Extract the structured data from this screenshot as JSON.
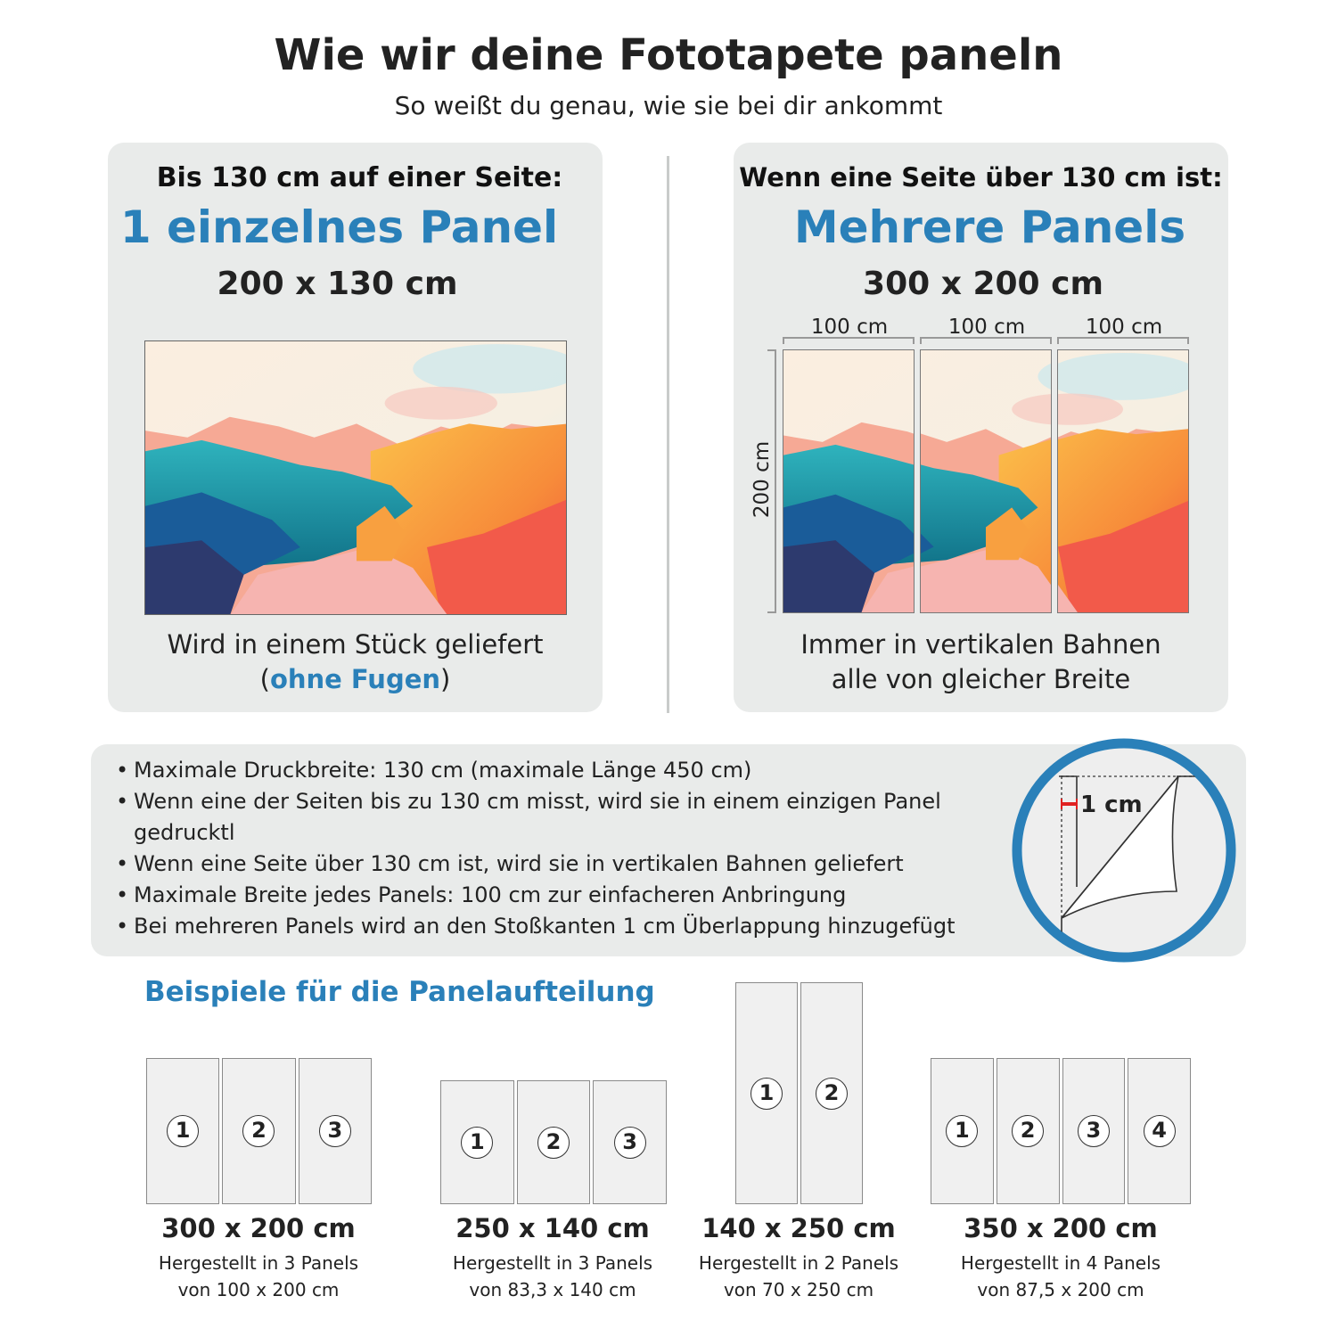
{
  "header": {
    "title": "Wie wir deine Fototapete paneln",
    "subtitle": "So weißt du genau, wie sie bei dir ankommt"
  },
  "left_card": {
    "heading": "Bis 130 cm auf einer Seite:",
    "highlight": "1 einzelnes Panel",
    "dimensions": "200 x 130 cm",
    "footer_line1": "Wird in einem Stück geliefert",
    "footer_open": "(",
    "footer_highlight": "ohne Fugen",
    "footer_close": ")"
  },
  "right_card": {
    "heading": "Wenn eine Seite über 130 cm ist:",
    "highlight": "Mehrere Panels",
    "dimensions": "300 x 200 cm",
    "panel_width_labels": [
      "100 cm",
      "100 cm",
      "100 cm"
    ],
    "height_label": "200 cm",
    "footer_line1": "Immer in vertikalen Bahnen",
    "footer_line2": "alle von gleicher Breite"
  },
  "info": {
    "bullets": [
      "Maximale Druckbreite: 130 cm (maximale Länge 450 cm)",
      "Wenn eine der Seiten bis zu 130 cm misst, wird sie in einem einzigen Panel gedrucktl",
      "Wenn eine Seite über 130 cm ist, wird sie in vertikalen Bahnen geliefert",
      "Maximale Breite jedes Panels: 100 cm zur einfacheren Anbringung",
      "Bei mehreren Panels wird an den Stoßkanten 1 cm Überlappung hinzugefügt"
    ],
    "overlap_label": "1 cm"
  },
  "examples": {
    "heading": "Beispiele für die Panelaufteilung",
    "items": [
      {
        "size": "300 x 200 cm",
        "line1": "Hergestellt in 3 Panels",
        "line2": "von 100 x 200 cm",
        "panels": [
          "1",
          "2",
          "3"
        ]
      },
      {
        "size": "250 x 140 cm",
        "line1": "Hergestellt in 3 Panels",
        "line2": "von 83,3 x 140 cm",
        "panels": [
          "1",
          "2",
          "3"
        ]
      },
      {
        "size": "140 x 250 cm",
        "line1": "Hergestellt in 2 Panels",
        "line2": "von 70 x 250 cm",
        "panels": [
          "1",
          "2"
        ]
      },
      {
        "size": "350 x 200 cm",
        "line1": "Hergestellt in 4 Panels",
        "line2": "von 87,5 x 200 cm",
        "panels": [
          "1",
          "2",
          "3",
          "4"
        ]
      }
    ]
  },
  "colors": {
    "accent": "#2a80b9",
    "card_bg": "#e9ebea",
    "overlap_marker": "#e02020"
  }
}
